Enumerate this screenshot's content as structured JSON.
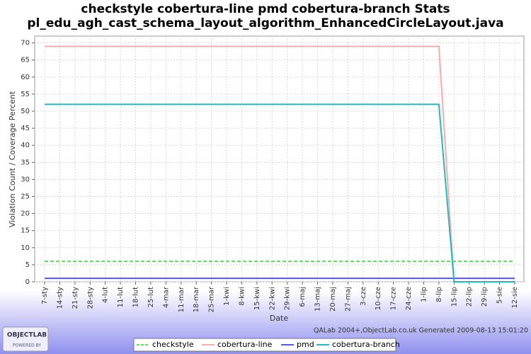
{
  "chart_data": {
    "type": "line",
    "title": "checkstyle cobertura-line pmd cobertura-branch  Stats",
    "subtitle": "pl_edu_agh_cast_schema_layout_algorithm_EnhancedCircleLayout.java",
    "x_label": "Date",
    "y_label": "Violation Count / Coverage Percent",
    "footer": "QALab 2004+,ObjectLab.co.uk Generated 2009-08-13 15:01:20",
    "logo": {
      "name": "OBJECTLAB",
      "tagline": "POWERED BY"
    },
    "categories": [
      "7-sty",
      "14-sty",
      "21-sty",
      "28-sty",
      "4-lut",
      "11-lut",
      "18-lut",
      "25-lut",
      "4-mar",
      "11-mar",
      "18-mar",
      "25-mar",
      "1-kwi",
      "8-kwi",
      "15-kwi",
      "22-kwi",
      "29-kwi",
      "6-maj",
      "13-maj",
      "20-maj",
      "27-maj",
      "3-cze",
      "10-cze",
      "17-cze",
      "24-cze",
      "1-lip",
      "8-lip",
      "15-lip",
      "22-lip",
      "29-lip",
      "5-sie",
      "12-sie"
    ],
    "series": [
      {
        "name": "checkstyle",
        "color": "#44ee44",
        "dashed": true,
        "values": [
          6,
          6,
          6,
          6,
          6,
          6,
          6,
          6,
          6,
          6,
          6,
          6,
          6,
          6,
          6,
          6,
          6,
          6,
          6,
          6,
          6,
          6,
          6,
          6,
          6,
          6,
          6,
          6,
          6,
          6,
          6,
          6
        ]
      },
      {
        "name": "cobertura-line",
        "color": "#ffaaaa",
        "dashed": false,
        "values": [
          69,
          69,
          69,
          69,
          69,
          69,
          69,
          69,
          69,
          69,
          69,
          69,
          69,
          69,
          69,
          69,
          69,
          69,
          69,
          69,
          69,
          69,
          69,
          69,
          69,
          69,
          69,
          0,
          0,
          0,
          0,
          0
        ]
      },
      {
        "name": "pmd",
        "color": "#5555ee",
        "dashed": false,
        "values": [
          1,
          1,
          1,
          1,
          1,
          1,
          1,
          1,
          1,
          1,
          1,
          1,
          1,
          1,
          1,
          1,
          1,
          1,
          1,
          1,
          1,
          1,
          1,
          1,
          1,
          1,
          1,
          1,
          1,
          1,
          1,
          1
        ]
      },
      {
        "name": "cobertura-branch",
        "color": "#22bbbb",
        "dashed": false,
        "values": [
          52,
          52,
          52,
          52,
          52,
          52,
          52,
          52,
          52,
          52,
          52,
          52,
          52,
          52,
          52,
          52,
          52,
          52,
          52,
          52,
          52,
          52,
          52,
          52,
          52,
          52,
          52,
          0,
          0,
          0,
          0,
          0
        ]
      }
    ],
    "ylim": [
      0,
      72
    ],
    "yticks": [
      0,
      5,
      10,
      15,
      20,
      25,
      30,
      35,
      40,
      45,
      50,
      55,
      60,
      65,
      70
    ],
    "grid": true,
    "legend": "bottom"
  }
}
